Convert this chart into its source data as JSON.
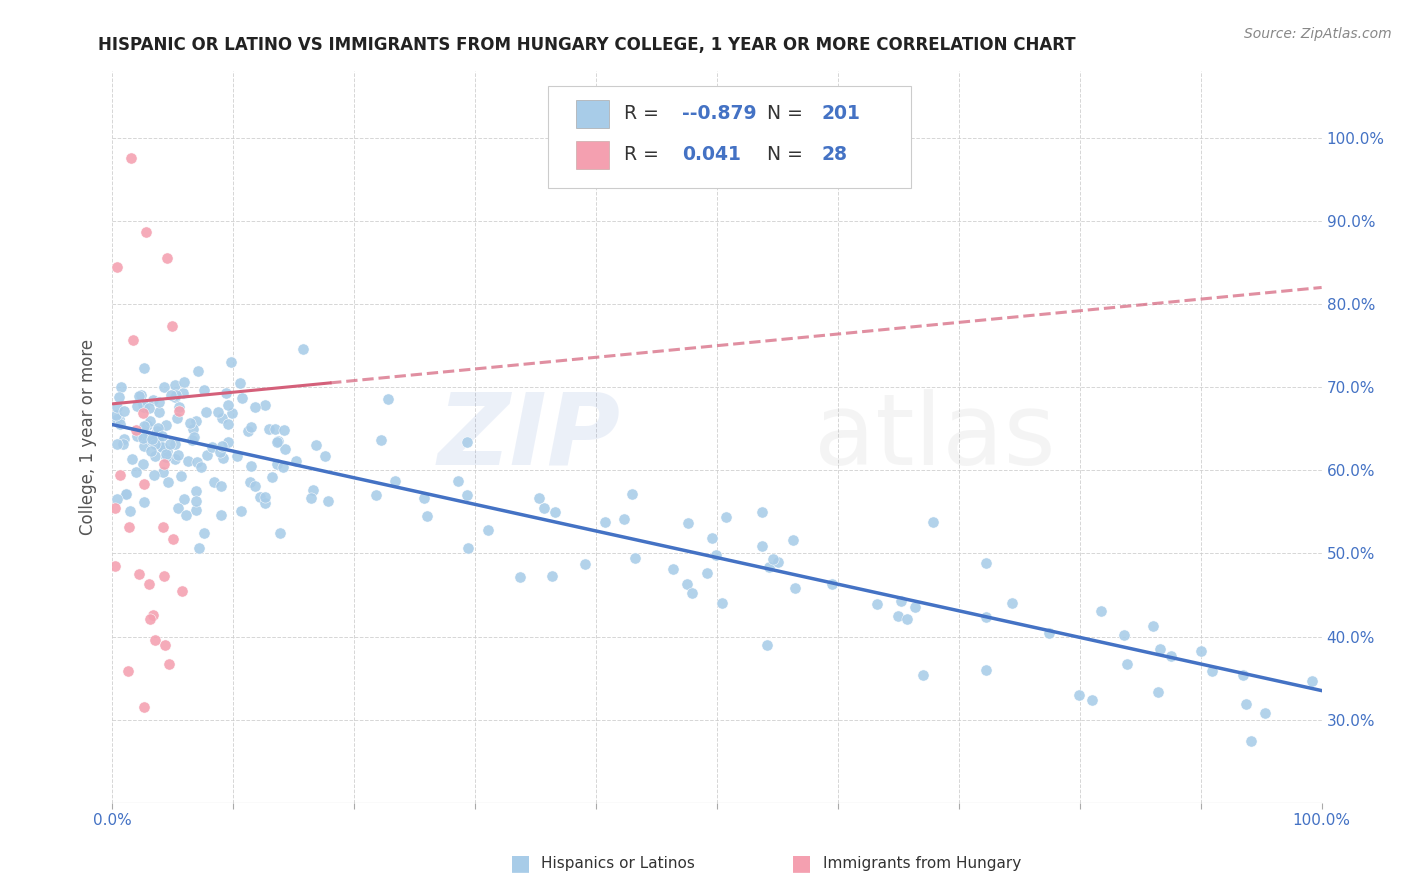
{
  "title": "HISPANIC OR LATINO VS IMMIGRANTS FROM HUNGARY COLLEGE, 1 YEAR OR MORE CORRELATION CHART",
  "source": "Source: ZipAtlas.com",
  "ylabel": "College, 1 year or more",
  "blue_scatter_color": "#a8cce8",
  "pink_scatter_color": "#f4a0b0",
  "blue_line_color": "#4472c4",
  "pink_line_color": "#d4607a",
  "background_color": "#ffffff",
  "grid_color": "#cccccc",
  "title_color": "#222222",
  "tick_label_color": "#4472c4",
  "source_color": "#888888",
  "legend_blue_r": "-0.879",
  "legend_blue_n": "201",
  "legend_pink_r": "0.041",
  "legend_pink_n": "28",
  "xmin": 0.0,
  "xmax": 1.0,
  "ymin": 0.2,
  "ymax": 1.08,
  "yticks": [
    0.3,
    0.4,
    0.5,
    0.6,
    0.7,
    0.8,
    0.9,
    1.0
  ]
}
